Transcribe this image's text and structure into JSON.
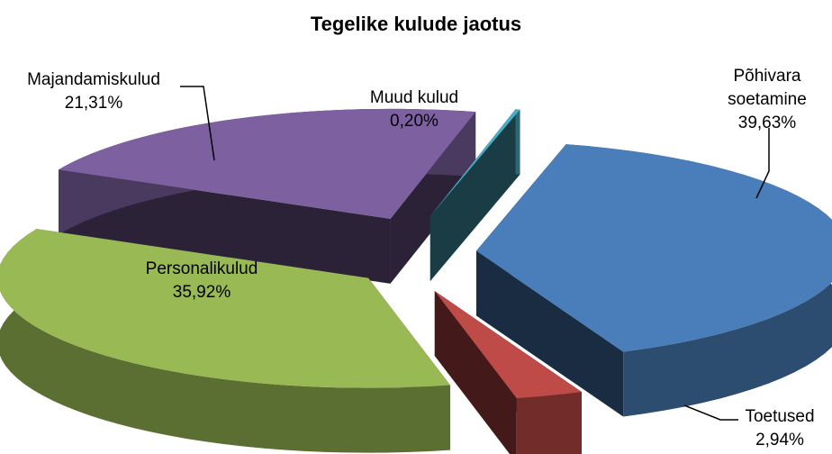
{
  "chart_data": {
    "type": "pie",
    "title": "Tegelike kulude jaotus",
    "categories": [
      "Põhivara soetamine",
      "Toetused",
      "Personalikulud",
      "Majandamiskulud",
      "Muud kulud"
    ],
    "values": [
      39.63,
      2.94,
      35.92,
      21.31,
      0.2
    ],
    "value_labels": [
      "39,63%",
      "2,94%",
      "35,92%",
      "21,31%",
      "0,20%"
    ],
    "colors": [
      "#4a7ebb",
      "#be4b48",
      "#98b954",
      "#7d60a0",
      "#4bacc6"
    ]
  }
}
